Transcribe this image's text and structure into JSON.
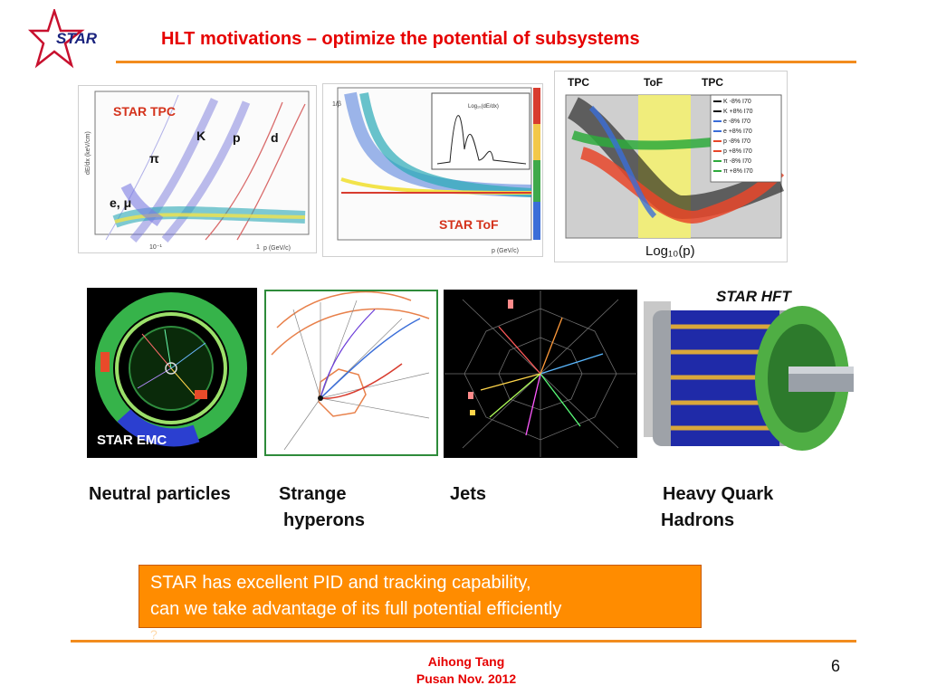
{
  "logo": {
    "text": "STAR"
  },
  "slide": {
    "title": "HLT motivations – optimize the potential of subsystems",
    "page_number": "6"
  },
  "figures": {
    "tpc": {
      "title": "STAR TPC",
      "particles": [
        "K",
        "p",
        "d",
        "π",
        "e, μ"
      ],
      "ylabel": "dE/dx (keV/cm)",
      "xlabel": "p (GeV/c)",
      "x_ticks": [
        "10⁻¹",
        "1"
      ]
    },
    "tof": {
      "title": "STAR ToF",
      "ylabel": "1/β",
      "xlabel": "p (GeV/c)",
      "inset": "Log₁₀(dE/dx)"
    },
    "combined": {
      "regions": [
        "TPC",
        "ToF",
        "TPC"
      ],
      "xlabel": "Log₁₀(p)",
      "legend": [
        "K -8% I70",
        "K +8% I70",
        "e -8% I70",
        "e +8% I70",
        "p -8% I70",
        "p +8% I70",
        "π -8% I70",
        "π +8% I70"
      ]
    },
    "emc": {
      "label": "STAR EMC"
    },
    "hft": {
      "label": "STAR HFT"
    }
  },
  "captions": {
    "neutral": "Neutral particles",
    "strange_line1": "Strange",
    "strange_line2": "hyperons",
    "jets": "Jets",
    "heavy_line1": "Heavy Quark",
    "heavy_line2": "Hadrons"
  },
  "callout": {
    "line1": "STAR has excellent PID and tracking capability,",
    "line2": "can we take advantage of its full potential efficiently",
    "line3": "?"
  },
  "footer": {
    "author": "Aihong Tang",
    "event": "Pusan Nov.  2012"
  },
  "colors": {
    "title": "#e60000",
    "rule": "#f28c1e",
    "callout_bg": "#ff8c00",
    "footer": "#e60000"
  }
}
